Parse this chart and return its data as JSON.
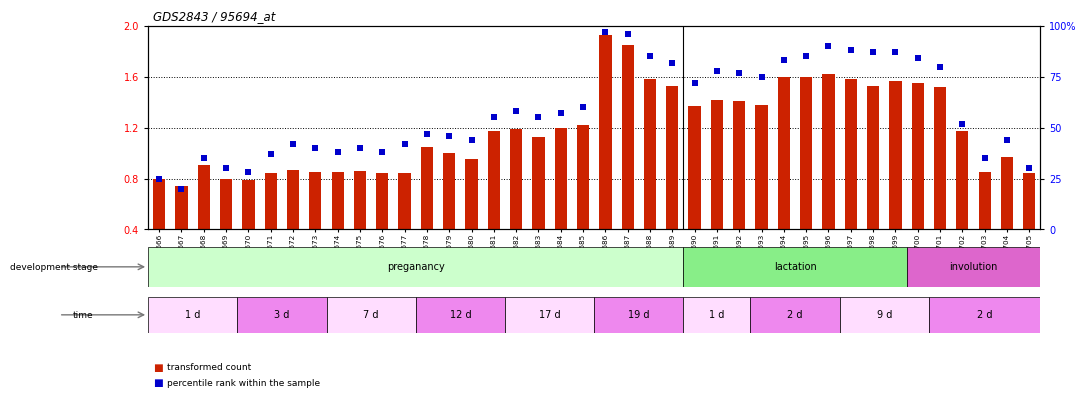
{
  "title": "GDS2843 / 95694_at",
  "samples": [
    "GSM202666",
    "GSM202667",
    "GSM202668",
    "GSM202669",
    "GSM202670",
    "GSM202671",
    "GSM202672",
    "GSM202673",
    "GSM202674",
    "GSM202675",
    "GSM202676",
    "GSM202677",
    "GSM202678",
    "GSM202679",
    "GSM202680",
    "GSM202681",
    "GSM202682",
    "GSM202683",
    "GSM202684",
    "GSM202685",
    "GSM202686",
    "GSM202687",
    "GSM202688",
    "GSM202689",
    "GSM202690",
    "GSM202691",
    "GSM202692",
    "GSM202693",
    "GSM202694",
    "GSM202695",
    "GSM202696",
    "GSM202697",
    "GSM202698",
    "GSM202699",
    "GSM202700",
    "GSM202701",
    "GSM202702",
    "GSM202703",
    "GSM202704",
    "GSM202705"
  ],
  "transformed_count": [
    0.8,
    0.74,
    0.91,
    0.8,
    0.79,
    0.84,
    0.87,
    0.85,
    0.85,
    0.86,
    0.84,
    0.84,
    1.05,
    1.0,
    0.95,
    1.17,
    1.19,
    1.13,
    1.2,
    1.22,
    1.93,
    1.85,
    1.58,
    1.53,
    1.37,
    1.42,
    1.41,
    1.38,
    1.6,
    1.6,
    1.62,
    1.58,
    1.53,
    1.57,
    1.55,
    1.52,
    1.17,
    0.85,
    0.97,
    0.84
  ],
  "percentile_rank": [
    25,
    20,
    35,
    30,
    28,
    37,
    42,
    40,
    38,
    40,
    38,
    42,
    47,
    46,
    44,
    55,
    58,
    55,
    57,
    60,
    97,
    96,
    85,
    82,
    72,
    78,
    77,
    75,
    83,
    85,
    90,
    88,
    87,
    87,
    84,
    80,
    52,
    35,
    44,
    30
  ],
  "bar_color": "#cc2200",
  "dot_color": "#0000cc",
  "ylim": [
    0.4,
    2.0
  ],
  "y2lim": [
    0,
    100
  ],
  "yticks": [
    0.4,
    0.8,
    1.2,
    1.6,
    2.0
  ],
  "y2ticks": [
    0,
    25,
    50,
    75,
    100
  ],
  "y2ticklabels": [
    "0",
    "25",
    "50",
    "75",
    "100%"
  ],
  "dotted_lines": [
    0.8,
    1.2,
    1.6
  ],
  "development_stages": [
    {
      "label": "preganancy",
      "start": 0,
      "end": 24,
      "color": "#ccffcc"
    },
    {
      "label": "lactation",
      "start": 24,
      "end": 34,
      "color": "#88ee88"
    },
    {
      "label": "involution",
      "start": 34,
      "end": 40,
      "color": "#dd66cc"
    }
  ],
  "time_periods": [
    {
      "label": "1 d",
      "start": 0,
      "end": 4,
      "color": "#ffddff"
    },
    {
      "label": "3 d",
      "start": 4,
      "end": 8,
      "color": "#ee88ee"
    },
    {
      "label": "7 d",
      "start": 8,
      "end": 12,
      "color": "#ffddff"
    },
    {
      "label": "12 d",
      "start": 12,
      "end": 16,
      "color": "#ee88ee"
    },
    {
      "label": "17 d",
      "start": 16,
      "end": 20,
      "color": "#ffddff"
    },
    {
      "label": "19 d",
      "start": 20,
      "end": 24,
      "color": "#ee88ee"
    },
    {
      "label": "1 d",
      "start": 24,
      "end": 27,
      "color": "#ffddff"
    },
    {
      "label": "2 d",
      "start": 27,
      "end": 31,
      "color": "#ee88ee"
    },
    {
      "label": "9 d",
      "start": 31,
      "end": 35,
      "color": "#ffddff"
    },
    {
      "label": "2 d",
      "start": 35,
      "end": 40,
      "color": "#ee88ee"
    }
  ],
  "background_color": "#ffffff"
}
